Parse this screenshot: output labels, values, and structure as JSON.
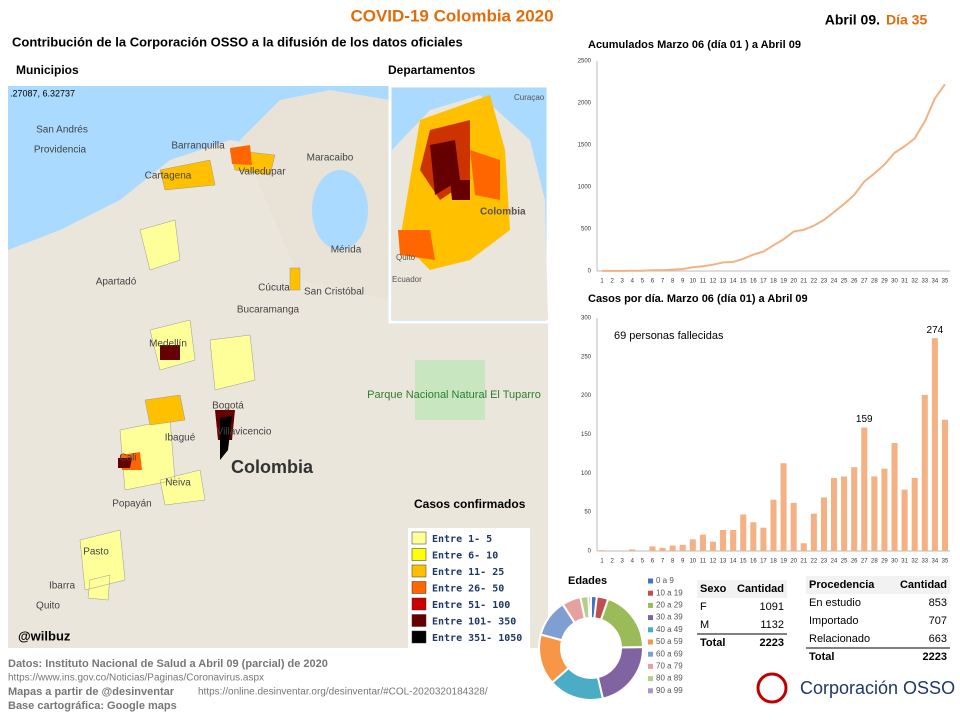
{
  "header": {
    "title": "COVID-19 Colombia 2020",
    "date": "Abril 09.",
    "day": "Día 35",
    "subtitle": "Contribución de la Corporación OSSO a la difusión de los datos oficiales"
  },
  "maps": {
    "municipios": "Municipios",
    "departamentos": "Departamentos",
    "coords": ".27087, 6.32737",
    "handle": "@wilbuz",
    "labels": [
      "San Andrés",
      "Providencia",
      "Barranquilla",
      "Cartagena",
      "Valledupar",
      "Maracaibo",
      "Cúcuta",
      "San Cristóbal",
      "Mérida",
      "Bucaramanga",
      "Medellín",
      "Apartadó",
      "Bogotá",
      "Villavicencio",
      "Ibagué",
      "Cali",
      "Neiva",
      "Popayán",
      "Pasto",
      "Quito",
      "Ibarra",
      "Colombia",
      "Parque Nacional Natural El Tuparro"
    ],
    "inset_labels": [
      "Colombia",
      "Curaçao",
      "Quito",
      "Ecuador"
    ],
    "legend_title": "Casos confirmados",
    "legend": [
      {
        "label": "Entre 1- 5",
        "color": "#ffff99"
      },
      {
        "label": "Entre 6- 10",
        "color": "#ffff00"
      },
      {
        "label": "Entre 11- 25",
        "color": "#ffc000"
      },
      {
        "label": "Entre 26- 50",
        "color": "#ff6600"
      },
      {
        "label": "Entre 51- 100",
        "color": "#cc0000"
      },
      {
        "label": "Entre 101- 350",
        "color": "#660000"
      },
      {
        "label": "Entre 351- 1050",
        "color": "#000000"
      }
    ]
  },
  "chart_data": [
    {
      "type": "line",
      "title": "Acumulados  Marzo 06 (día 01 ) a Abril 09",
      "x": [
        1,
        2,
        3,
        4,
        5,
        6,
        7,
        8,
        9,
        10,
        11,
        12,
        13,
        14,
        15,
        16,
        17,
        18,
        19,
        20,
        21,
        22,
        23,
        24,
        25,
        26,
        27,
        28,
        29,
        30,
        31,
        32,
        33,
        34,
        35
      ],
      "series": [
        {
          "color": "#f4b183",
          "values": [
            1,
            1,
            1,
            3,
            3,
            9,
            9,
            16,
            24,
            45,
            57,
            75,
            102,
            108,
            145,
            196,
            231,
            306,
            378,
            470,
            491,
            539,
            608,
            702,
            798,
            906,
            1065,
            1161,
            1267,
            1406,
            1485,
            1579,
            1780,
            2054,
            2223
          ]
        }
      ],
      "ylim": [
        0,
        2500
      ],
      "yticks": [
        0,
        500,
        1000,
        1500,
        2000,
        2500
      ]
    },
    {
      "type": "bar",
      "title": "Casos por día. Marzo 06 (día 01) a Abril 09",
      "annotation": "69 personas fallecidas",
      "x": [
        1,
        2,
        3,
        4,
        5,
        6,
        7,
        8,
        9,
        10,
        11,
        12,
        13,
        14,
        15,
        16,
        17,
        18,
        19,
        20,
        21,
        22,
        23,
        24,
        25,
        26,
        27,
        28,
        29,
        30,
        31,
        32,
        33,
        34,
        35
      ],
      "values": [
        1,
        0,
        0,
        2,
        0,
        6,
        4,
        7,
        8,
        15,
        21,
        12,
        27,
        27,
        47,
        37,
        30,
        66,
        113,
        62,
        10,
        48,
        69,
        94,
        96,
        108,
        159,
        96,
        106,
        139,
        79,
        94,
        201,
        274,
        169
      ],
      "value_labels": [
        null,
        null,
        null,
        null,
        null,
        null,
        null,
        null,
        null,
        null,
        null,
        null,
        null,
        null,
        null,
        null,
        null,
        null,
        null,
        null,
        null,
        null,
        null,
        null,
        null,
        null,
        "159",
        null,
        null,
        null,
        null,
        null,
        null,
        "274",
        null
      ],
      "color": "#f4b183",
      "ylim": [
        0,
        300
      ],
      "yticks": [
        0,
        50,
        100,
        150,
        200,
        250,
        300
      ]
    },
    {
      "type": "pie",
      "title": "Edades",
      "categories": [
        "0 a 9",
        "10 a 19",
        "20 a 29",
        "30 a 39",
        "40 a 49",
        "50 a 59",
        "60 a 69",
        "70 a 79",
        "80 a 89",
        "90 a 99"
      ],
      "values": [
        40,
        80,
        430,
        480,
        380,
        350,
        260,
        130,
        55,
        18
      ],
      "colors": [
        "#4472c4",
        "#c0504d",
        "#9bbb59",
        "#8064a2",
        "#4bacc6",
        "#f79646",
        "#7f9fd3",
        "#e6a0a0",
        "#b5cf8a",
        "#a896c4"
      ]
    }
  ],
  "sexo": {
    "header": [
      "Sexo",
      "Cantidad"
    ],
    "rows": [
      [
        "F",
        "1091"
      ],
      [
        "M",
        "1132"
      ]
    ],
    "total": [
      "Total",
      "2223"
    ]
  },
  "procedencia": {
    "header": [
      "Procedencia",
      "Cantidad"
    ],
    "rows": [
      [
        "En estudio",
        "853"
      ],
      [
        "Importado",
        "707"
      ],
      [
        "Relacionado",
        "663"
      ]
    ],
    "total": [
      "Total",
      "2223"
    ]
  },
  "footer": {
    "line1": "Datos: Instituto Nacional de Salud a Abril 09 (parcial) de 2020",
    "line2": "https://www.ins.gov.co/Noticias/Paginas/Coronavirus.aspx",
    "line3a": "Mapas a partir de @desinventar",
    "line3b": "https://online.desinventar.org/desinventar/#COL-2020320184328/",
    "line4": "Base cartográfica: Google  maps"
  },
  "logo": "Corporación OSSO"
}
